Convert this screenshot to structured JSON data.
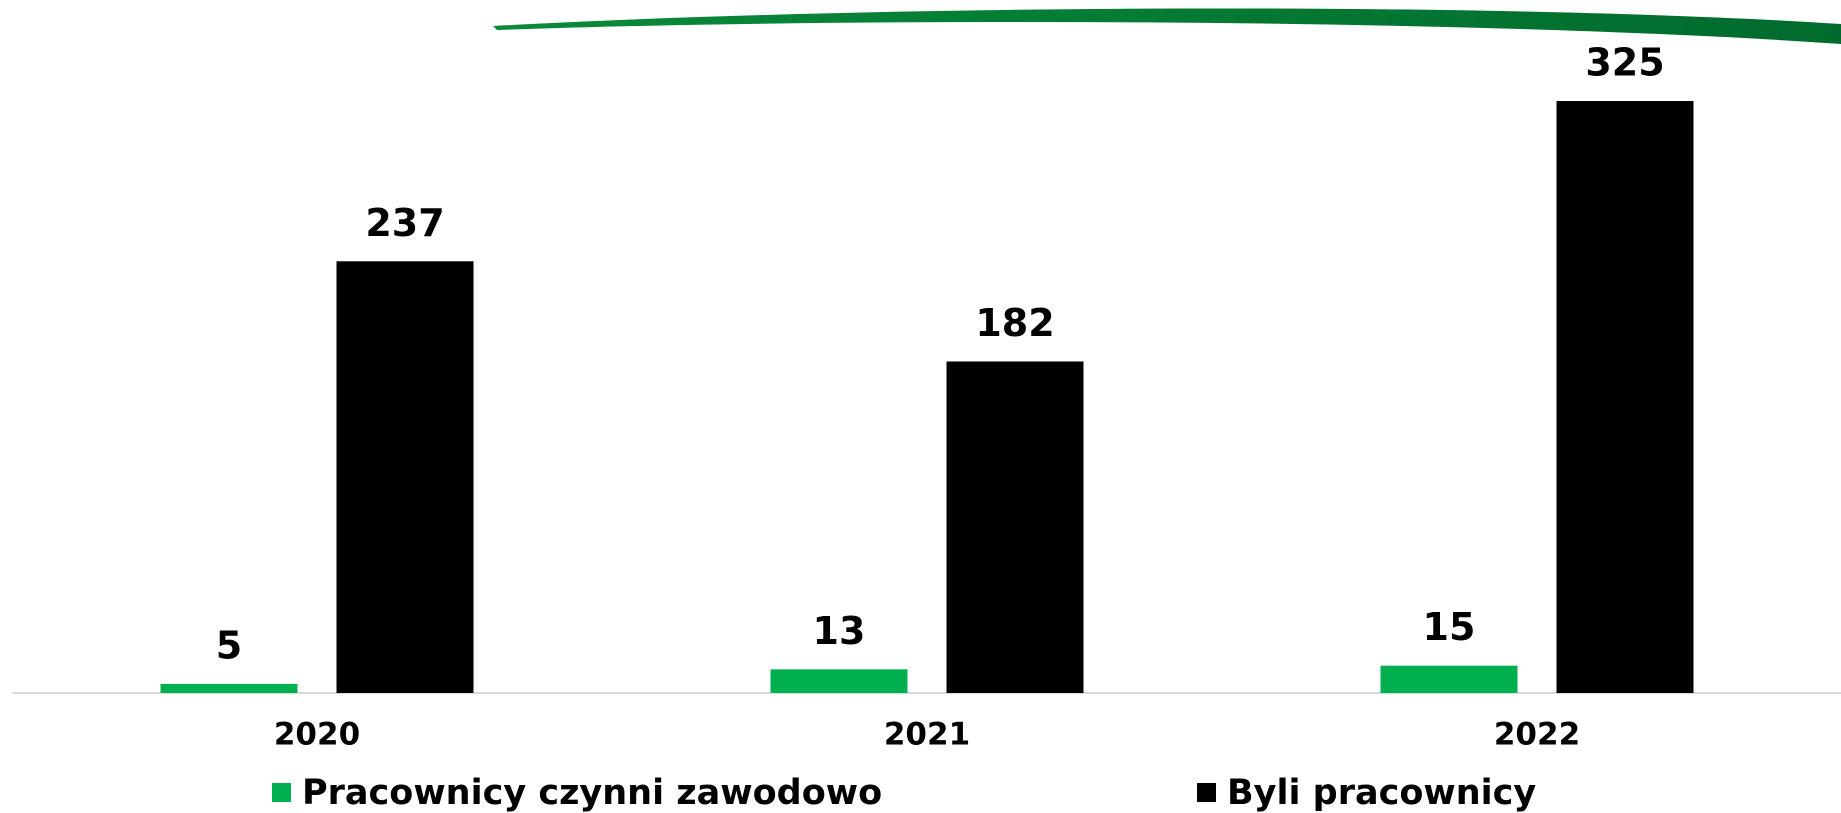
{
  "chart_data": {
    "type": "bar",
    "categories": [
      "2020",
      "2021",
      "2022"
    ],
    "series": [
      {
        "name": "Pracownicy czynni zawodowo",
        "color": "#00b050",
        "values": [
          5,
          13,
          15
        ]
      },
      {
        "name": "Byli pracownicy",
        "color": "#000000",
        "values": [
          237,
          182,
          325
        ]
      }
    ],
    "legend": "bottom"
  }
}
